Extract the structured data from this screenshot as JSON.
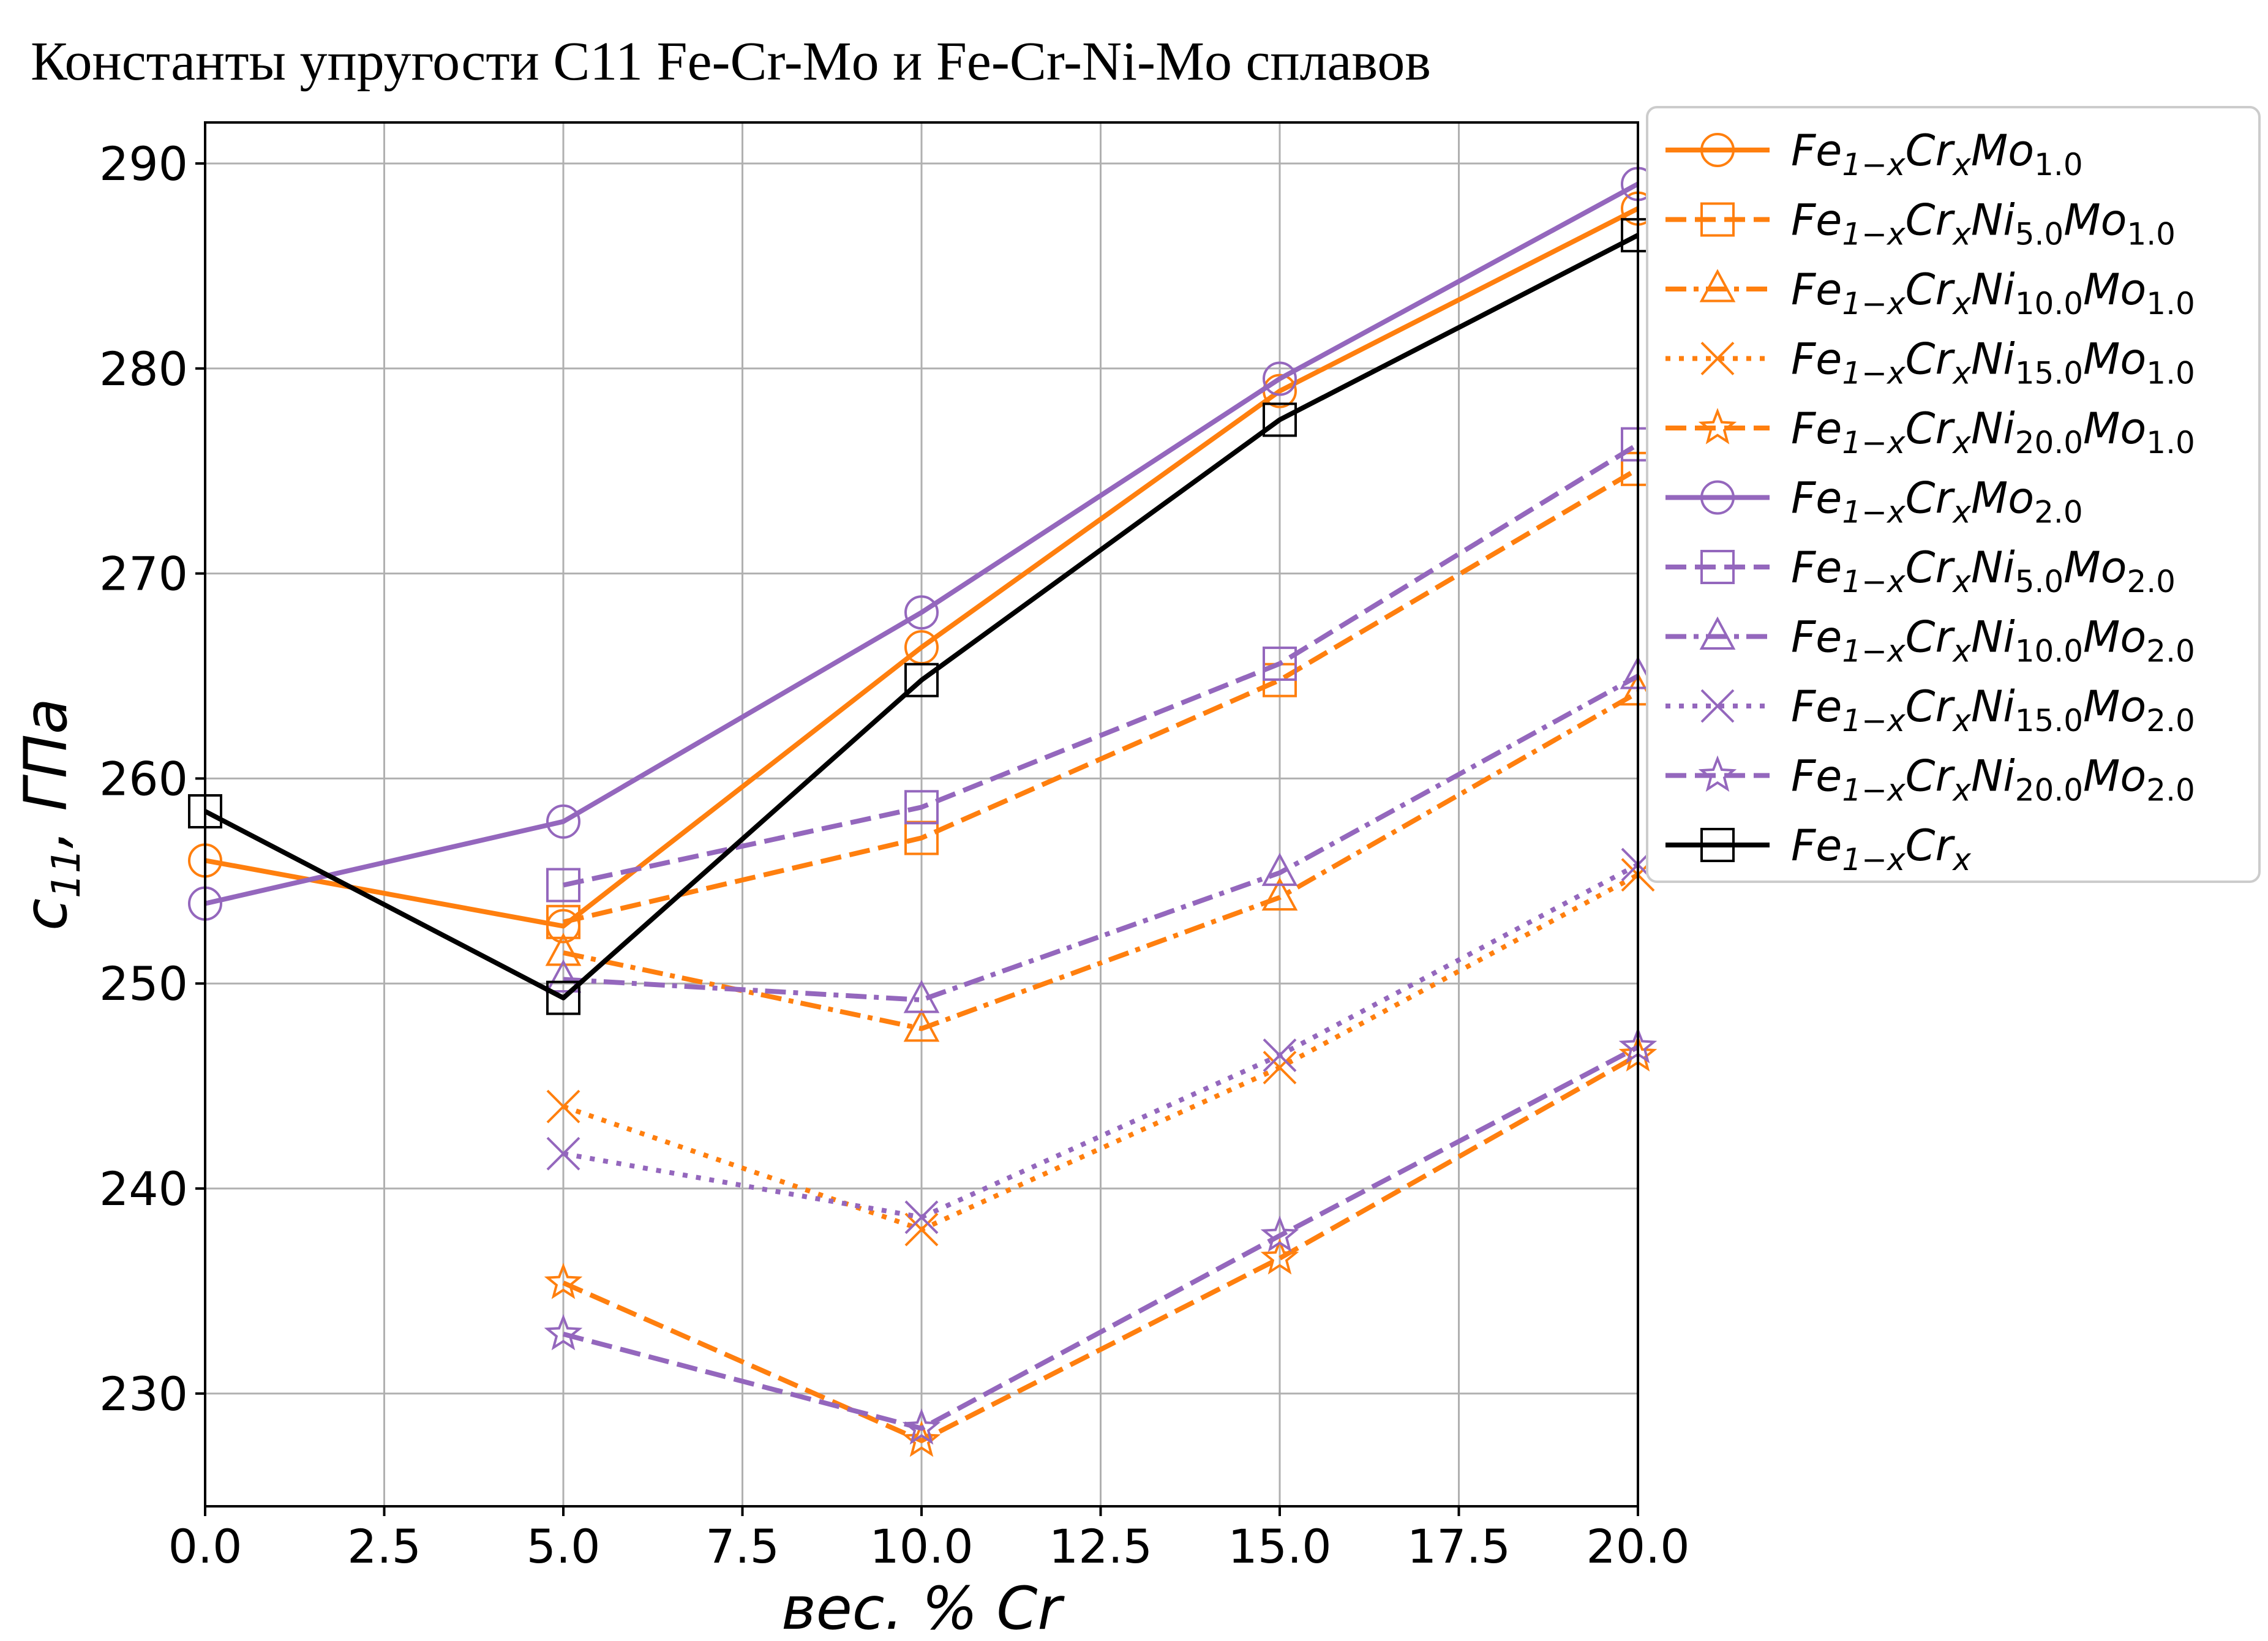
{
  "chart_data": {
    "type": "line",
    "title": "Константы упругости C11 Fe-Cr-Mo и Fe-Cr-Ni-Mo сплавов",
    "xlabel": "вес. % Cr",
    "ylabel": "c11, ГПа",
    "xlim": [
      0,
      20
    ],
    "ylim": [
      224.5,
      292
    ],
    "xticks": [
      0,
      2.5,
      5,
      7.5,
      10,
      12.5,
      15,
      17.5,
      20
    ],
    "xtick_labels": [
      "0.0",
      "2.5",
      "5.0",
      "7.5",
      "10.0",
      "12.5",
      "15.0",
      "17.5",
      "20.0"
    ],
    "yticks": [
      230,
      240,
      250,
      260,
      270,
      280,
      290
    ],
    "ytick_labels": [
      "230",
      "240",
      "250",
      "260",
      "270",
      "280",
      "290"
    ],
    "grid": true,
    "legend_position": "outside-right-top",
    "colors": {
      "orange": "#ff7f0e",
      "purple": "#9467bd",
      "black": "#000000"
    },
    "series": [
      {
        "name": "Fe1−xCrxMo1.0",
        "label": {
          "base": "Fe",
          "sub1": "1−x",
          "mid": "Cr",
          "sub2": "x",
          "mid2": "Mo",
          "sub3": "1.0"
        },
        "color": "#ff7f0e",
        "dash": "solid",
        "marker": "circle",
        "x": [
          0,
          5,
          10,
          15,
          20
        ],
        "y": [
          256.0,
          252.8,
          266.4,
          278.9,
          287.8
        ]
      },
      {
        "name": "Fe1−xCrxNi5.0Mo1.0",
        "label": {
          "base": "Fe",
          "sub1": "1−x",
          "mid": "Cr",
          "sub2": "x",
          "mid2": "Ni",
          "sub3": "5.0",
          "mid3": "Mo",
          "sub4": "1.0"
        },
        "color": "#ff7f0e",
        "dash": "dashed",
        "marker": "square",
        "x": [
          5,
          10,
          15,
          20
        ],
        "y": [
          253.0,
          257.1,
          264.8,
          275.1
        ]
      },
      {
        "name": "Fe1−xCrxNi10.0Mo1.0",
        "label": {
          "base": "Fe",
          "sub1": "1−x",
          "mid": "Cr",
          "sub2": "x",
          "mid2": "Ni",
          "sub3": "10.0",
          "mid3": "Mo",
          "sub4": "1.0"
        },
        "color": "#ff7f0e",
        "dash": "dashdot",
        "marker": "triangle",
        "x": [
          5,
          10,
          15,
          20
        ],
        "y": [
          251.5,
          247.8,
          254.2,
          264.2
        ]
      },
      {
        "name": "Fe1−xCrxNi15.0Mo1.0",
        "label": {
          "base": "Fe",
          "sub1": "1−x",
          "mid": "Cr",
          "sub2": "x",
          "mid2": "Ni",
          "sub3": "15.0",
          "mid3": "Mo",
          "sub4": "1.0"
        },
        "color": "#ff7f0e",
        "dash": "dotted",
        "marker": "x",
        "x": [
          5,
          10,
          15,
          20
        ],
        "y": [
          244.0,
          238.0,
          245.9,
          255.3
        ]
      },
      {
        "name": "Fe1−xCrxNi20.0Mo1.0",
        "label": {
          "base": "Fe",
          "sub1": "1−x",
          "mid": "Cr",
          "sub2": "x",
          "mid2": "Ni",
          "sub3": "20.0",
          "mid3": "Mo",
          "sub4": "1.0"
        },
        "color": "#ff7f0e",
        "dash": "dashed",
        "marker": "star",
        "x": [
          5,
          10,
          15,
          20
        ],
        "y": [
          235.4,
          227.7,
          236.6,
          246.5
        ]
      },
      {
        "name": "Fe1−xCrxMo2.0",
        "label": {
          "base": "Fe",
          "sub1": "1−x",
          "mid": "Cr",
          "sub2": "x",
          "mid2": "Mo",
          "sub3": "2.0"
        },
        "color": "#9467bd",
        "dash": "solid",
        "marker": "circle",
        "x": [
          0,
          5,
          10,
          15,
          20
        ],
        "y": [
          253.9,
          257.9,
          268.1,
          279.5,
          289.0
        ]
      },
      {
        "name": "Fe1−xCrxNi5.0Mo2.0",
        "label": {
          "base": "Fe",
          "sub1": "1−x",
          "mid": "Cr",
          "sub2": "x",
          "mid2": "Ni",
          "sub3": "5.0",
          "mid3": "Mo",
          "sub4": "2.0"
        },
        "color": "#9467bd",
        "dash": "dashed",
        "marker": "square",
        "x": [
          5,
          10,
          15,
          20
        ],
        "y": [
          254.8,
          258.6,
          265.6,
          276.3
        ]
      },
      {
        "name": "Fe1−xCrxNi10.0Mo2.0",
        "label": {
          "base": "Fe",
          "sub1": "1−x",
          "mid": "Cr",
          "sub2": "x",
          "mid2": "Ni",
          "sub3": "10.0",
          "mid3": "Mo",
          "sub4": "2.0"
        },
        "color": "#9467bd",
        "dash": "dashdot",
        "marker": "triangle",
        "x": [
          5,
          10,
          15,
          20
        ],
        "y": [
          250.2,
          249.2,
          255.4,
          265.0
        ]
      },
      {
        "name": "Fe1−xCrxNi15.0Mo2.0",
        "label": {
          "base": "Fe",
          "sub1": "1−x",
          "mid": "Cr",
          "sub2": "x",
          "mid2": "Ni",
          "sub3": "15.0",
          "mid3": "Mo",
          "sub4": "2.0"
        },
        "color": "#9467bd",
        "dash": "dotted",
        "marker": "x",
        "x": [
          5,
          10,
          15,
          20
        ],
        "y": [
          241.7,
          238.6,
          246.5,
          255.8
        ]
      },
      {
        "name": "Fe1−xCrxNi20.0Mo2.0",
        "label": {
          "base": "Fe",
          "sub1": "1−x",
          "mid": "Cr",
          "sub2": "x",
          "mid2": "Ni",
          "sub3": "20.0",
          "mid3": "Mo",
          "sub4": "2.0"
        },
        "color": "#9467bd",
        "dash": "dashed",
        "marker": "star",
        "x": [
          5,
          10,
          15,
          20
        ],
        "y": [
          232.9,
          228.3,
          237.7,
          246.9
        ]
      },
      {
        "name": "Fe1−xCrx",
        "label": {
          "base": "Fe",
          "sub1": "1−x",
          "mid": "Cr",
          "sub2": "x"
        },
        "color": "#000000",
        "dash": "solid",
        "marker": "square",
        "x": [
          0,
          5,
          10,
          15,
          20
        ],
        "y": [
          258.4,
          249.3,
          264.8,
          277.5,
          286.5
        ]
      }
    ]
  }
}
